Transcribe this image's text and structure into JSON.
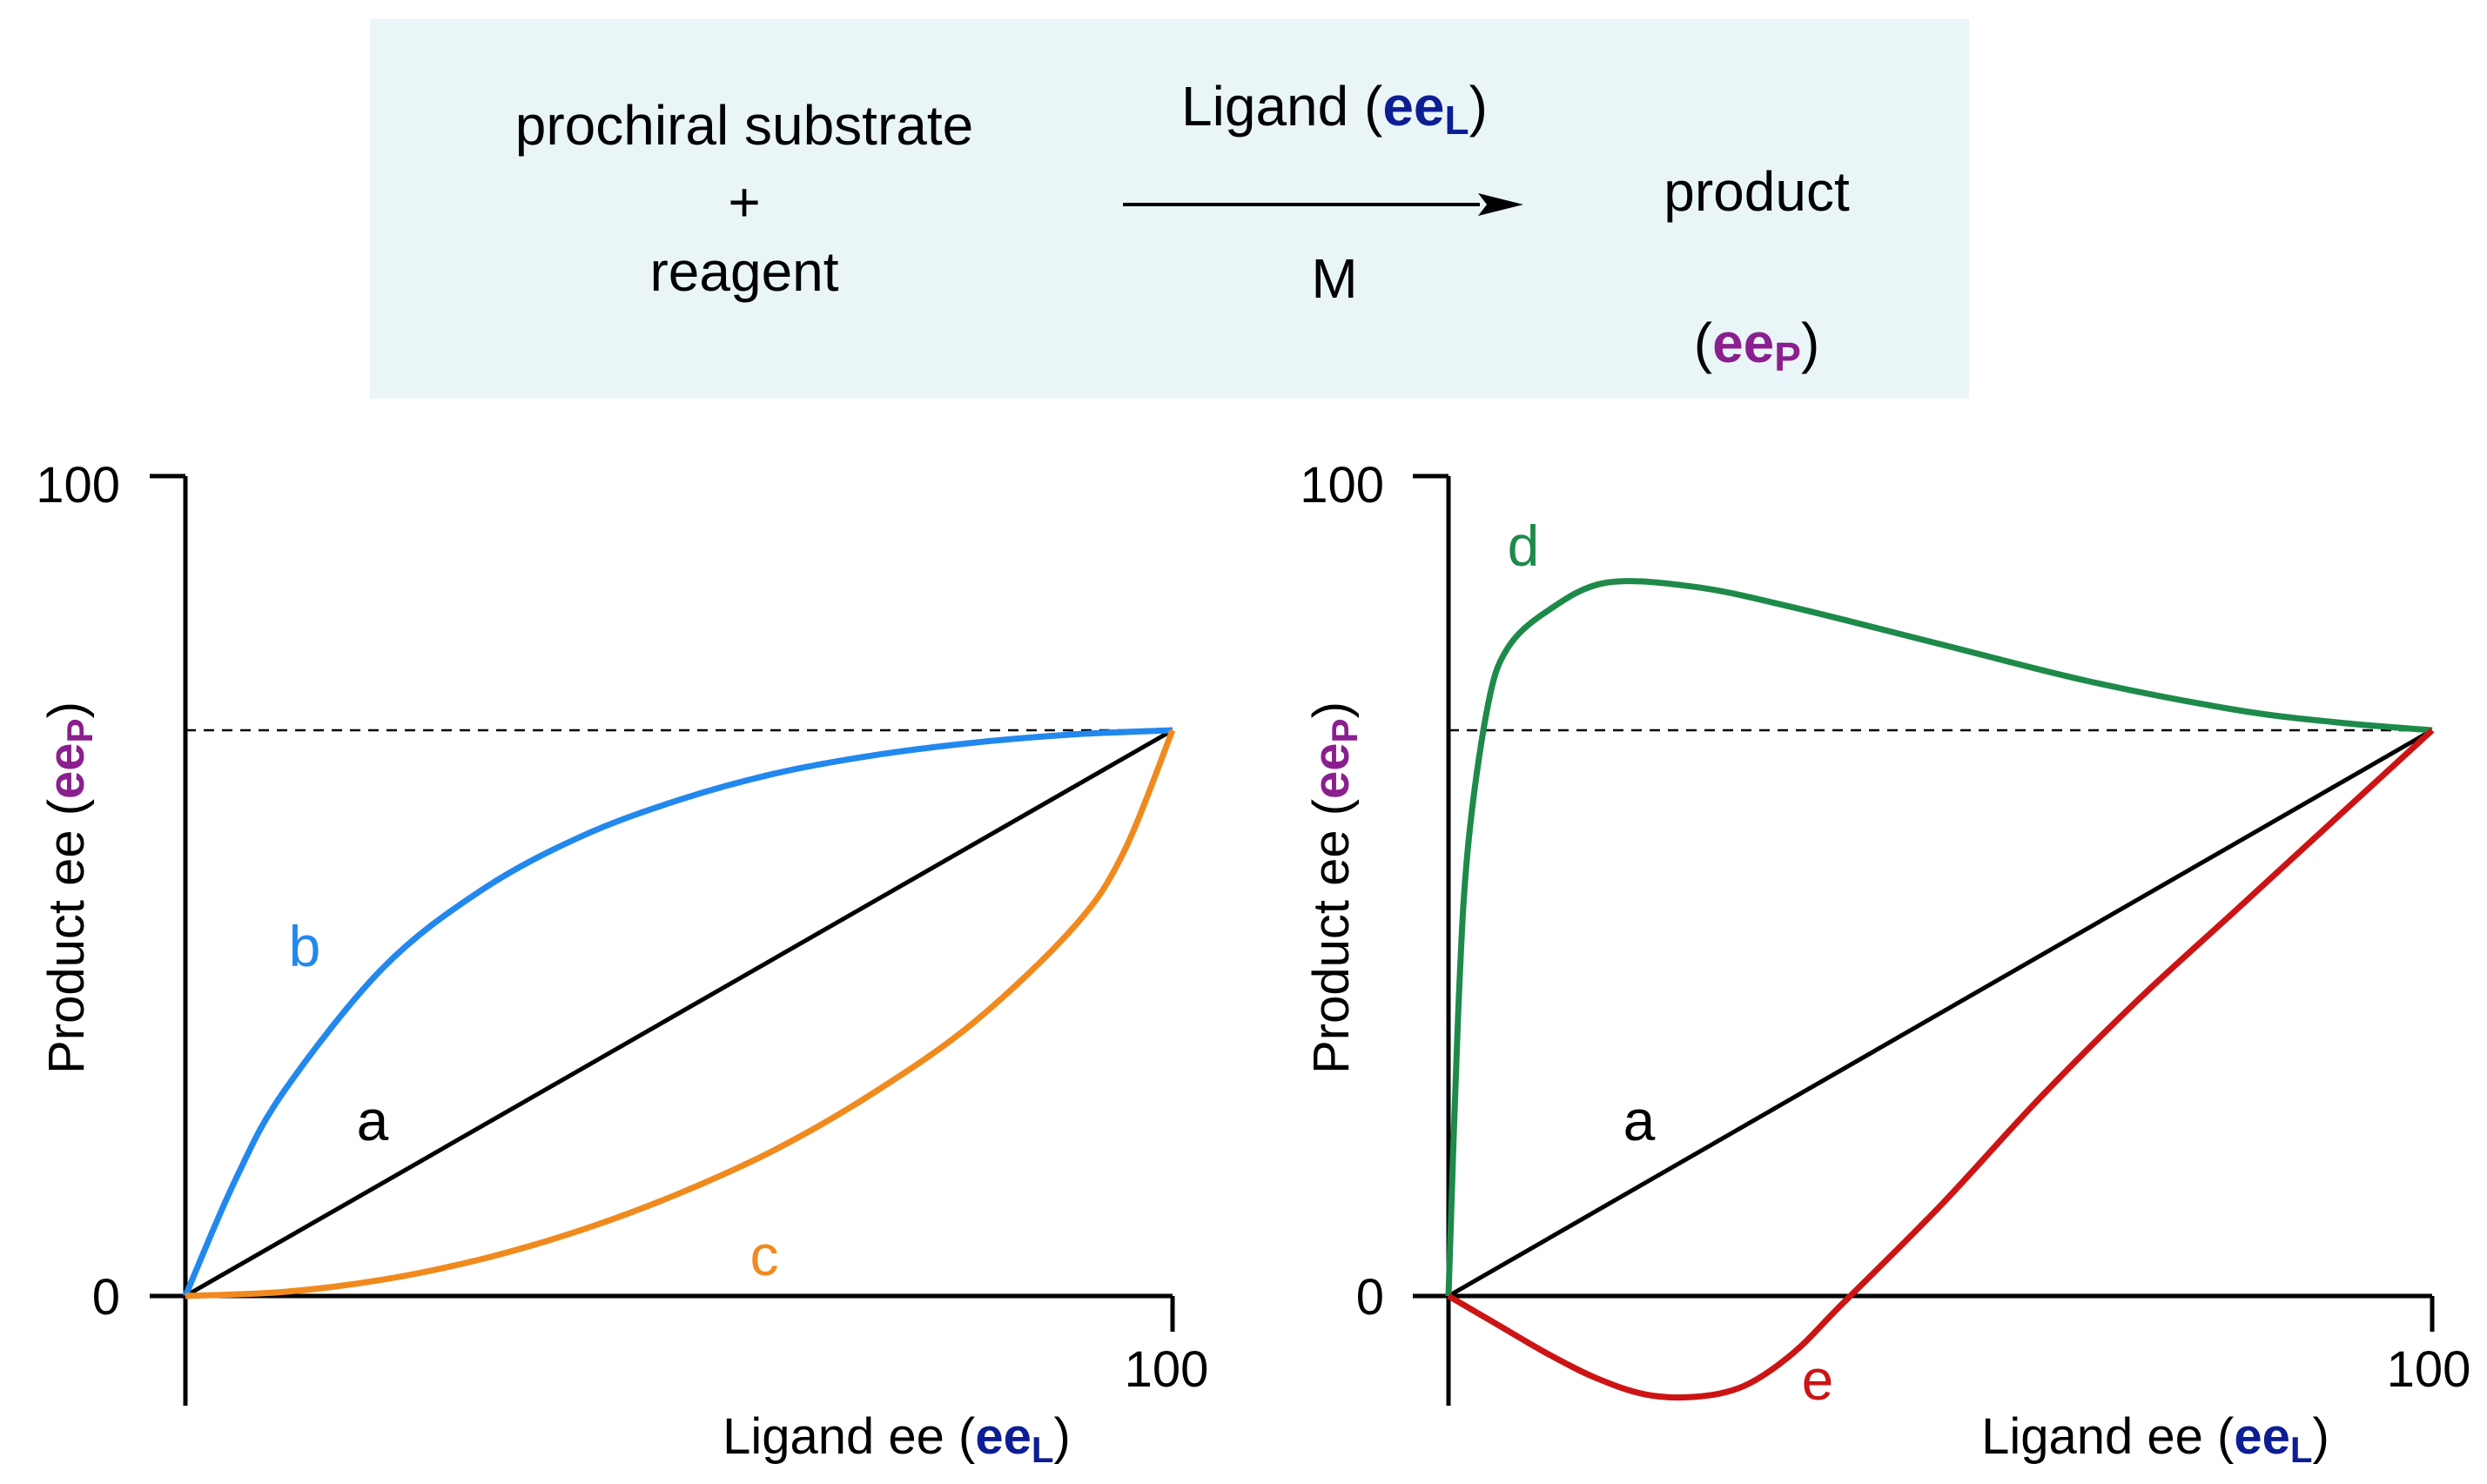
{
  "colors": {
    "ee_L": "#0d1e94",
    "ee_P": "#8a1f8f",
    "a": "#000000",
    "b": "#2288ee",
    "c": "#f08a1e",
    "d": "#1e8a4a",
    "e": "#cc1414",
    "scheme_bg": "#e9f5f7"
  },
  "scheme": {
    "reactant_line1": "prochiral substrate",
    "plus": "+",
    "reactant_line2": "reagent",
    "ligand_text": "Ligand (",
    "ligand_ee": "ee",
    "ligand_ee_sub": "L",
    "ligand_close": ")",
    "metal": "M",
    "product": "product",
    "product_ee_open": "(",
    "product_ee": "ee",
    "product_ee_sub": "P",
    "product_ee_close": ")"
  },
  "chart_data": [
    {
      "type": "line",
      "panel": "left",
      "xlabel": "Ligand ee (",
      "xlabel_ee": "ee",
      "xlabel_sub": "L",
      "xlabel_close": ")",
      "ylabel": "Product ee (",
      "ylabel_ee": "ee",
      "ylabel_sub": "P",
      "ylabel_close": ")",
      "xlim": [
        0,
        100
      ],
      "ylim": [
        -13,
        100
      ],
      "x_ticks": [
        "100"
      ],
      "y_ticks": [
        "0",
        "100"
      ],
      "reference_line": {
        "y": 69,
        "style": "dashed"
      },
      "series": [
        {
          "name": "a",
          "label": "a",
          "x": [
            0,
            100
          ],
          "y": [
            0,
            69
          ]
        },
        {
          "name": "b",
          "label": "b",
          "x": [
            0,
            5,
            10,
            20,
            30,
            40,
            50,
            60,
            70,
            80,
            90,
            100
          ],
          "y": [
            0,
            14,
            25,
            40,
            49.5,
            56,
            60.5,
            63.8,
            66,
            67.5,
            68.5,
            69
          ]
        },
        {
          "name": "c",
          "label": "c",
          "x": [
            0,
            10,
            20,
            30,
            40,
            50,
            60,
            70,
            80,
            90,
            95,
            100
          ],
          "y": [
            0,
            0.5,
            2,
            4.5,
            8,
            12.5,
            18,
            25,
            33.5,
            45,
            54,
            69
          ]
        }
      ]
    },
    {
      "type": "line",
      "panel": "right",
      "xlabel": "Ligand ee (",
      "xlabel_ee": "ee",
      "xlabel_sub": "L",
      "xlabel_close": ")",
      "ylabel": "Product ee (",
      "ylabel_ee": "ee",
      "ylabel_sub": "P",
      "ylabel_close": ")",
      "xlim": [
        0,
        100
      ],
      "ylim": [
        -13,
        100
      ],
      "x_ticks": [
        "100"
      ],
      "y_ticks": [
        "0",
        "100"
      ],
      "reference_line": {
        "y": 69,
        "style": "dashed"
      },
      "series": [
        {
          "name": "a",
          "label": "a",
          "x": [
            0,
            100
          ],
          "y": [
            0,
            69
          ]
        },
        {
          "name": "d",
          "label": "d",
          "x": [
            0,
            1,
            2,
            4,
            6,
            10,
            16,
            25,
            35,
            50,
            65,
            80,
            90,
            100
          ],
          "y": [
            0,
            35,
            55,
            72,
            79,
            83.5,
            87,
            86.5,
            84,
            79.5,
            75,
            71.5,
            70,
            69
          ]
        },
        {
          "name": "e",
          "label": "e",
          "x": [
            0,
            5,
            10,
            15,
            20,
            25,
            30,
            35,
            40,
            50,
            60,
            70,
            80,
            90,
            100
          ],
          "y": [
            0,
            -3.5,
            -7,
            -10,
            -12,
            -12.3,
            -11,
            -7,
            -1,
            11,
            24,
            36,
            47,
            58,
            69
          ]
        }
      ]
    }
  ]
}
